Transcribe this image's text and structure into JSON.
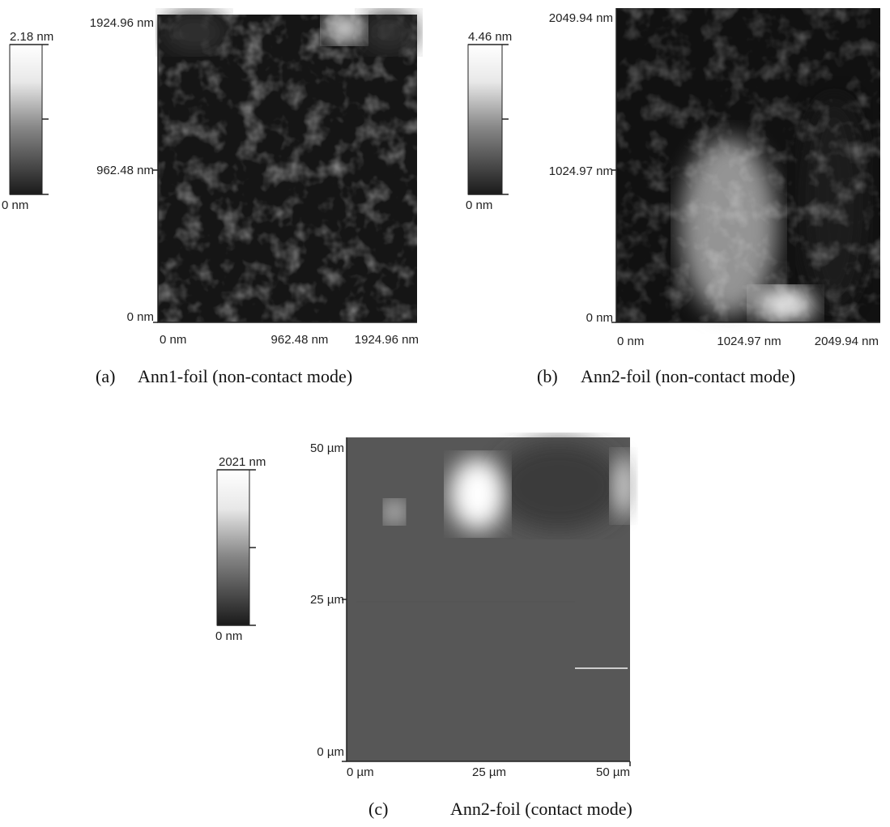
{
  "panels": [
    {
      "colorbar": {
        "max": "2.18 nm",
        "min": "0 nm"
      },
      "y_ticks": [
        "1924.96 nm",
        "962.48 nm",
        "0 nm"
      ],
      "x_ticks": [
        "0 nm",
        "962.48 nm",
        "1924.96 nm"
      ],
      "caption": {
        "label": "(a)",
        "text": "Ann1-foil (non-contact mode)"
      }
    },
    {
      "colorbar": {
        "max": "4.46 nm",
        "min": "0 nm"
      },
      "y_ticks": [
        "2049.94 nm",
        "1024.97 nm",
        "0 nm"
      ],
      "x_ticks": [
        "0 nm",
        "1024.97 nm",
        "2049.94 nm"
      ],
      "caption": {
        "label": "(b)",
        "text": "Ann2-foil (non-contact mode)"
      }
    },
    {
      "colorbar": {
        "max": "2021 nm",
        "min": "0 nm"
      },
      "y_ticks": [
        "50 µm",
        "25 µm",
        "0 µm"
      ],
      "x_ticks": [
        "0 µm",
        "25 µm",
        "50 µm"
      ],
      "caption": {
        "label": "(c)",
        "text": "Ann2-foil (contact mode)"
      }
    }
  ]
}
